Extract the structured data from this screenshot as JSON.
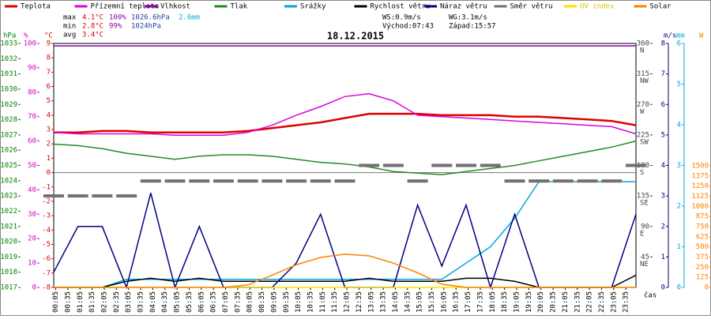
{
  "chart_data": {
    "type": "line",
    "title": "18.12.2015",
    "stats": {
      "max": {
        "label": "max",
        "temp": "4.1°C",
        "hum": "100%",
        "press": "1026.6hPa",
        "rain": "2.6mm"
      },
      "min": {
        "label": "min",
        "temp": "2.8°C",
        "hum": "99%",
        "press": "1024hPa"
      },
      "avg": {
        "label": "avg",
        "temp": "3.4°C"
      },
      "ws": "WS:0.9m/s",
      "wg": "WG:3.1m/s",
      "sunrise": "Východ:07:43",
      "sunset": "Západ:15:57"
    },
    "x_label": "čas",
    "xlim": [
      0,
      24
    ],
    "xticks": [
      {
        "value": 0.083,
        "label": "00:05"
      },
      {
        "value": 0.583,
        "label": "00:35"
      },
      {
        "value": 1.083,
        "label": "01:05"
      },
      {
        "value": 1.583,
        "label": "01:35"
      },
      {
        "value": 2.083,
        "label": "02:05"
      },
      {
        "value": 2.583,
        "label": "02:35"
      },
      {
        "value": 3.083,
        "label": "03:05"
      },
      {
        "value": 3.583,
        "label": "03:35"
      },
      {
        "value": 4.083,
        "label": "04:05"
      },
      {
        "value": 4.583,
        "label": "04:35"
      },
      {
        "value": 5.083,
        "label": "05:05"
      },
      {
        "value": 5.583,
        "label": "05:35"
      },
      {
        "value": 6.083,
        "label": "06:05"
      },
      {
        "value": 6.583,
        "label": "06:35"
      },
      {
        "value": 7.083,
        "label": "07:05"
      },
      {
        "value": 7.583,
        "label": "07:35"
      },
      {
        "value": 8.083,
        "label": "08:05"
      },
      {
        "value": 8.583,
        "label": "08:35"
      },
      {
        "value": 9.083,
        "label": "09:05"
      },
      {
        "value": 9.583,
        "label": "09:35"
      },
      {
        "value": 10.083,
        "label": "10:05"
      },
      {
        "value": 10.583,
        "label": "10:35"
      },
      {
        "value": 11.083,
        "label": "11:05"
      },
      {
        "value": 11.583,
        "label": "11:35"
      },
      {
        "value": 12.083,
        "label": "12:05"
      },
      {
        "value": 12.583,
        "label": "12:35"
      },
      {
        "value": 13.083,
        "label": "13:05"
      },
      {
        "value": 13.583,
        "label": "13:35"
      },
      {
        "value": 14.083,
        "label": "14:05"
      },
      {
        "value": 14.583,
        "label": "14:35"
      },
      {
        "value": 15.083,
        "label": "15:05"
      },
      {
        "value": 15.583,
        "label": "15:35"
      },
      {
        "value": 16.083,
        "label": "16:05"
      },
      {
        "value": 16.583,
        "label": "16:35"
      },
      {
        "value": 17.083,
        "label": "17:05"
      },
      {
        "value": 17.583,
        "label": "17:35"
      },
      {
        "value": 18.083,
        "label": "18:05"
      },
      {
        "value": 18.583,
        "label": "18:35"
      },
      {
        "value": 19.083,
        "label": "19:05"
      },
      {
        "value": 19.583,
        "label": "19:35"
      },
      {
        "value": 20.083,
        "label": "20:05"
      },
      {
        "value": 20.583,
        "label": "20:35"
      },
      {
        "value": 21.083,
        "label": "21:05"
      },
      {
        "value": 21.583,
        "label": "21:35"
      },
      {
        "value": 22.083,
        "label": "22:05"
      },
      {
        "value": 22.583,
        "label": "22:35"
      },
      {
        "value": 23.083,
        "label": "23:05"
      },
      {
        "value": 23.583,
        "label": "23:35"
      }
    ],
    "axes": {
      "hpa": {
        "label": "hPa",
        "color": "#008000",
        "lim": [
          1017,
          1033
        ],
        "ticks": [
          1017,
          1018,
          1019,
          1020,
          1021,
          1022,
          1023,
          1024,
          1025,
          1026,
          1027,
          1028,
          1029,
          1030,
          1031,
          1032,
          1033
        ]
      },
      "pct": {
        "label": "%",
        "color": "#cc00cc",
        "lim": [
          0,
          100
        ],
        "ticks": [
          0,
          10,
          20,
          30,
          40,
          50,
          60,
          70,
          80,
          90,
          100
        ]
      },
      "degc": {
        "label": "°C",
        "color": "#e00000",
        "lim": [
          -8,
          9
        ],
        "ticks": [
          -8,
          -7,
          -6,
          -5,
          -4,
          -3,
          -2,
          -1,
          0,
          1,
          2,
          3,
          4,
          5,
          6,
          7,
          8,
          9
        ]
      },
      "dir": {
        "label": "",
        "color": "#444444",
        "lim": [
          0,
          360
        ],
        "ticks": [
          {
            "value": 45,
            "label": "45",
            "compass": "NE"
          },
          {
            "value": 90,
            "label": "90",
            "compass": "E"
          },
          {
            "value": 135,
            "label": "135",
            "compass": "SE"
          },
          {
            "value": 180,
            "label": "180",
            "compass": "S"
          },
          {
            "value": 225,
            "label": "225",
            "compass": "SW"
          },
          {
            "value": 270,
            "label": "270",
            "compass": "W"
          },
          {
            "value": 315,
            "label": "315",
            "compass": "NW"
          },
          {
            "value": 360,
            "label": "360",
            "compass": "N"
          }
        ]
      },
      "ms": {
        "label": "m/s",
        "color": "#000080",
        "lim": [
          0,
          8
        ],
        "ticks": [
          0,
          1,
          2,
          3,
          4,
          5,
          6,
          7,
          8
        ]
      },
      "mm": {
        "label": "mm",
        "color": "#00aadd",
        "lim": [
          0,
          6
        ],
        "ticks": [
          0,
          1,
          2,
          3,
          4,
          5,
          6
        ]
      },
      "w": {
        "label": "W",
        "color": "#ff8000",
        "lim": [
          0,
          1500
        ],
        "ticks": [
          0,
          125,
          250,
          375,
          500,
          625,
          750,
          875,
          1000,
          1125,
          1250,
          1375,
          1500
        ]
      }
    },
    "x": [
      0,
      1,
      2,
      3,
      4,
      5,
      6,
      7,
      8,
      9,
      10,
      11,
      12,
      13,
      14,
      15,
      16,
      17,
      18,
      19,
      20,
      21,
      22,
      23,
      24
    ],
    "series": [
      {
        "name": "Teplota",
        "color": "#e00000",
        "axis": "degc",
        "kind": "line",
        "values": [
          2.8,
          2.8,
          2.9,
          2.9,
          2.8,
          2.8,
          2.8,
          2.8,
          2.9,
          3.1,
          3.3,
          3.5,
          3.8,
          4.1,
          4.1,
          4.1,
          4.0,
          4.0,
          4.0,
          3.9,
          3.9,
          3.8,
          3.7,
          3.6,
          3.3
        ]
      },
      {
        "name": "Přízemní teplota",
        "color": "#dd00dd",
        "axis": "degc",
        "kind": "line",
        "values": [
          2.8,
          2.7,
          2.7,
          2.7,
          2.7,
          2.6,
          2.6,
          2.6,
          2.8,
          3.3,
          4.0,
          4.6,
          5.3,
          5.5,
          5.0,
          4.0,
          3.9,
          3.8,
          3.7,
          3.6,
          3.5,
          3.4,
          3.3,
          3.2,
          2.7
        ]
      },
      {
        "name": "Vlhkost",
        "color": "#8800aa",
        "axis": "pct",
        "kind": "line",
        "values": [
          99,
          99,
          99,
          99,
          99,
          99,
          99,
          99,
          99,
          99,
          99,
          99,
          99,
          99,
          99,
          99,
          99,
          99,
          99,
          99,
          99,
          99,
          99,
          99,
          99
        ]
      },
      {
        "name": "Tlak",
        "color": "#228b22",
        "axis": "hpa",
        "kind": "line",
        "values": [
          1026.4,
          1026.3,
          1026.1,
          1025.8,
          1025.6,
          1025.4,
          1025.6,
          1025.7,
          1025.7,
          1025.6,
          1025.4,
          1025.2,
          1025.1,
          1024.9,
          1024.6,
          1024.5,
          1024.4,
          1024.6,
          1024.8,
          1025.0,
          1025.3,
          1025.6,
          1025.9,
          1026.2,
          1026.6
        ]
      },
      {
        "name": "Srážky",
        "color": "#00aadd",
        "axis": "mm",
        "kind": "line",
        "values": [
          0,
          0,
          0,
          0.2,
          0.2,
          0.2,
          0.2,
          0.2,
          0.2,
          0.2,
          0.2,
          0.2,
          0.2,
          0.2,
          0.2,
          0.2,
          0.2,
          0.6,
          1.0,
          1.7,
          2.6,
          2.6,
          2.6,
          2.6,
          2.6
        ]
      },
      {
        "name": "Rychlost větru",
        "color": "#000000",
        "axis": "ms",
        "kind": "line",
        "values": [
          0,
          0,
          0,
          0.2,
          0.3,
          0.2,
          0.3,
          0.2,
          0.2,
          0.2,
          0.2,
          0.2,
          0.2,
          0.3,
          0.2,
          0.2,
          0.2,
          0.3,
          0.3,
          0.2,
          0,
          0,
          0,
          0,
          0.4
        ]
      },
      {
        "name": "Náraz větru",
        "color": "#000080",
        "axis": "ms",
        "kind": "line",
        "values": [
          0.5,
          2.0,
          2.0,
          0,
          3.1,
          0,
          2.0,
          0,
          0,
          0,
          0.8,
          2.4,
          0,
          0,
          0,
          2.7,
          0.7,
          2.7,
          0,
          2.4,
          0,
          0,
          0,
          0,
          2.4
        ]
      },
      {
        "name": "Směr větru",
        "color": "#707070",
        "axis": "dir",
        "kind": "dash",
        "values": [
          135,
          135,
          135,
          135,
          157,
          157,
          157,
          157,
          157,
          157,
          157,
          157,
          157,
          180,
          180,
          157,
          180,
          180,
          180,
          157,
          157,
          157,
          157,
          157,
          180
        ]
      },
      {
        "name": "UV index",
        "color": "#ffe000",
        "axis": "ms",
        "kind": "line",
        "values": [
          0,
          0,
          0,
          0,
          0,
          0,
          0,
          0,
          0,
          0,
          0,
          0,
          0,
          0,
          0,
          0,
          0,
          0,
          0,
          0,
          0,
          0,
          0,
          0,
          0
        ]
      },
      {
        "name": "Solar",
        "color": "#ff8000",
        "axis": "w",
        "kind": "line",
        "values": [
          0,
          0,
          0,
          0,
          0,
          0,
          0,
          0,
          30,
          150,
          280,
          370,
          410,
          390,
          300,
          180,
          40,
          0,
          0,
          0,
          0,
          0,
          0,
          0,
          0
        ]
      }
    ]
  }
}
